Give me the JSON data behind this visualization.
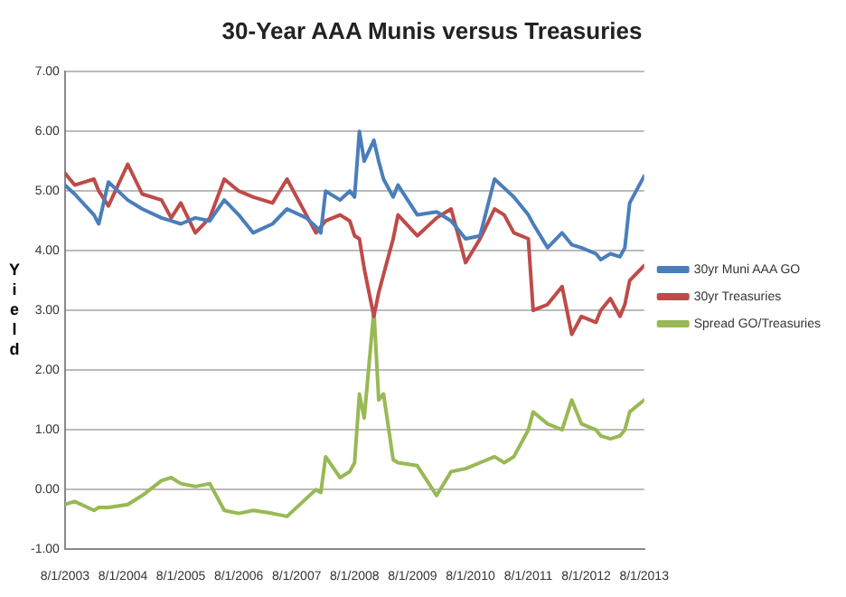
{
  "chart_data": {
    "type": "line",
    "title": "30-Year AAA Munis versus Treasuries",
    "ylabel": "Yield",
    "x": [
      "2003-08",
      "2003-10",
      "2004-02",
      "2004-03",
      "2004-05",
      "2004-09",
      "2004-12",
      "2005-04",
      "2005-06",
      "2005-08",
      "2005-11",
      "2006-02",
      "2006-05",
      "2006-08",
      "2006-11",
      "2007-03",
      "2007-06",
      "2007-10",
      "2007-12",
      "2008-01",
      "2008-02",
      "2008-05",
      "2008-07",
      "2008-08",
      "2008-09",
      "2008-10",
      "2008-12",
      "2009-01",
      "2009-02",
      "2009-04",
      "2009-05",
      "2009-09",
      "2010-01",
      "2010-04",
      "2010-07",
      "2010-10",
      "2011-01",
      "2011-03",
      "2011-05",
      "2011-08",
      "2011-09",
      "2011-12",
      "2012-03",
      "2012-05",
      "2012-07",
      "2012-10",
      "2012-11",
      "2013-01",
      "2013-03",
      "2013-04",
      "2013-05",
      "2013-08"
    ],
    "series": [
      {
        "name": "30yr Muni AAA GO",
        "color": "#4a7ebb",
        "values": [
          5.1,
          4.95,
          4.6,
          4.45,
          5.15,
          4.85,
          4.7,
          4.55,
          4.5,
          4.45,
          4.55,
          4.5,
          4.85,
          4.6,
          4.3,
          4.45,
          4.7,
          4.55,
          4.4,
          4.3,
          5.0,
          4.85,
          5.0,
          4.9,
          6.0,
          5.5,
          5.85,
          5.5,
          5.2,
          4.9,
          5.1,
          4.6,
          4.65,
          4.5,
          4.2,
          4.25,
          5.2,
          5.05,
          4.9,
          4.6,
          4.45,
          4.05,
          4.3,
          4.1,
          4.05,
          3.95,
          3.85,
          3.95,
          3.9,
          4.05,
          4.8,
          5.25
        ]
      },
      {
        "name": "30yr Treasuries",
        "color": "#be4b48",
        "values": [
          5.3,
          5.1,
          5.2,
          5.0,
          4.75,
          5.45,
          4.95,
          4.85,
          4.55,
          4.8,
          4.3,
          4.55,
          5.2,
          5.0,
          4.9,
          4.8,
          5.2,
          4.6,
          4.3,
          4.4,
          4.5,
          4.6,
          4.5,
          4.25,
          4.2,
          3.7,
          2.9,
          3.3,
          3.6,
          4.2,
          4.6,
          4.25,
          4.55,
          4.7,
          3.8,
          4.2,
          4.7,
          4.6,
          4.3,
          4.2,
          3.0,
          3.1,
          3.4,
          2.6,
          2.9,
          2.8,
          3.0,
          3.2,
          2.9,
          3.1,
          3.5,
          3.75
        ]
      },
      {
        "name": "Spread GO/Treasuries",
        "color": "#98b954",
        "values": [
          -0.25,
          -0.2,
          -0.35,
          -0.3,
          -0.3,
          -0.25,
          -0.1,
          0.15,
          0.2,
          0.1,
          0.05,
          0.1,
          -0.35,
          -0.4,
          -0.35,
          -0.4,
          -0.45,
          -0.15,
          0.0,
          -0.05,
          0.55,
          0.2,
          0.3,
          0.45,
          1.6,
          1.2,
          3.0,
          1.5,
          1.6,
          0.5,
          0.45,
          0.4,
          -0.1,
          0.3,
          0.35,
          0.45,
          0.55,
          0.45,
          0.55,
          1.0,
          1.3,
          1.1,
          1.0,
          1.5,
          1.1,
          1.0,
          0.9,
          0.85,
          0.9,
          1.0,
          1.3,
          1.5
        ]
      }
    ],
    "xlim": [
      "2003-08-01",
      "2013-08-01"
    ],
    "xticks": [
      {
        "value": "2003-08-01",
        "label": "8/1/2003"
      },
      {
        "value": "2004-08-01",
        "label": "8/1/2004"
      },
      {
        "value": "2005-08-01",
        "label": "8/1/2005"
      },
      {
        "value": "2006-08-01",
        "label": "8/1/2006"
      },
      {
        "value": "2007-08-01",
        "label": "8/1/2007"
      },
      {
        "value": "2008-08-01",
        "label": "8/1/2008"
      },
      {
        "value": "2009-08-01",
        "label": "8/1/2009"
      },
      {
        "value": "2010-08-01",
        "label": "8/1/2010"
      },
      {
        "value": "2011-08-01",
        "label": "8/1/2011"
      },
      {
        "value": "2012-08-01",
        "label": "8/1/2012"
      },
      {
        "value": "2013-08-01",
        "label": "8/1/2013"
      }
    ],
    "ylim": [
      -1,
      7
    ],
    "yticks": [
      {
        "value": -1,
        "label": "-1.00"
      },
      {
        "value": 0,
        "label": "0.00"
      },
      {
        "value": 1,
        "label": "1.00"
      },
      {
        "value": 2,
        "label": "2.00"
      },
      {
        "value": 3,
        "label": "3.00"
      },
      {
        "value": 4,
        "label": "4.00"
      },
      {
        "value": 5,
        "label": "5.00"
      },
      {
        "value": 6,
        "label": "6.00"
      },
      {
        "value": 7,
        "label": "7.00"
      }
    ],
    "grid": "y",
    "legend": "right",
    "marker": "none",
    "line_style": "solid"
  }
}
